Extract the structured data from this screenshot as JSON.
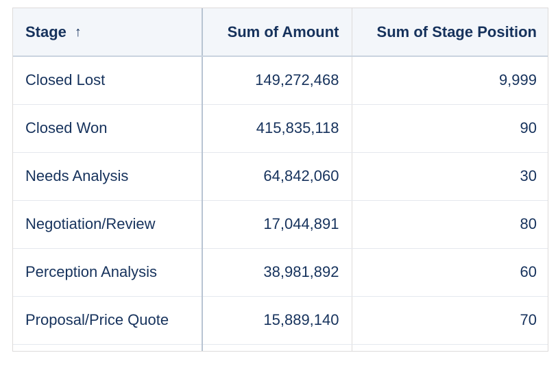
{
  "table": {
    "columns": [
      {
        "label": "Stage",
        "sort": "ascending",
        "sort_icon": "arrow-up-icon"
      },
      {
        "label": "Sum of Amount"
      },
      {
        "label": "Sum of Stage Position"
      }
    ],
    "sort_arrow": "↑",
    "rows": [
      {
        "stage": "Closed Lost",
        "amount": "149,272,468",
        "position": "9,999"
      },
      {
        "stage": "Closed Won",
        "amount": "415,835,118",
        "position": "90"
      },
      {
        "stage": "Needs Analysis",
        "amount": "64,842,060",
        "position": "30"
      },
      {
        "stage": "Negotiation/Review",
        "amount": "17,044,891",
        "position": "80"
      },
      {
        "stage": "Perception Analysis",
        "amount": "38,981,892",
        "position": "60"
      },
      {
        "stage": "Proposal/Price Quote",
        "amount": "15,889,140",
        "position": "70"
      }
    ]
  }
}
